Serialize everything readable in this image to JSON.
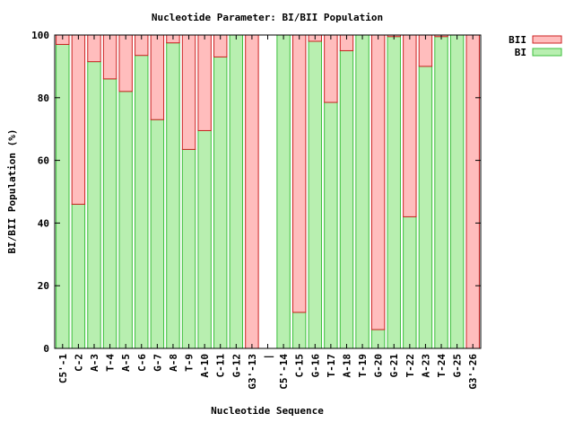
{
  "chart_data": {
    "type": "bar",
    "stacked": true,
    "title": "Nucleotide Parameter: BI/BII Population",
    "xlabel": "Nucleotide Sequence",
    "ylabel": "BI/BII Population (%)",
    "ylim": [
      0,
      100
    ],
    "yticks": [
      0,
      20,
      40,
      60,
      80,
      100
    ],
    "grid": false,
    "legend_position": "top-right, outside plot",
    "categories": [
      "C5'-1",
      "C-2",
      "A-3",
      "T-4",
      "A-5",
      "C-6",
      "G-7",
      "A-8",
      "T-9",
      "A-10",
      "C-11",
      "G-12",
      "G3'-13",
      "|",
      "C5'-14",
      "C-15",
      "G-16",
      "T-17",
      "A-18",
      "T-19",
      "G-20",
      "G-21",
      "T-22",
      "A-23",
      "T-24",
      "G-25",
      "G3'-26"
    ],
    "series": [
      {
        "name": "BI",
        "color": "#b8efb0",
        "stroke": "#3cbf3c",
        "values": [
          97,
          46,
          91.5,
          86,
          82,
          93.5,
          73,
          97.5,
          63.5,
          69.5,
          93,
          100,
          0,
          null,
          100,
          11.5,
          98,
          78.5,
          95,
          100,
          6,
          99.5,
          42,
          90,
          99.5,
          100,
          0
        ]
      },
      {
        "name": "BII",
        "color": "#ffbdbd",
        "stroke": "#cc2222",
        "values": [
          3,
          54,
          8.5,
          14,
          18,
          6.5,
          27,
          2.5,
          36.5,
          30.5,
          7,
          0,
          100,
          null,
          0,
          88.5,
          2,
          21.5,
          5,
          0,
          94,
          0.5,
          58,
          10,
          0.5,
          0,
          100
        ]
      }
    ]
  }
}
